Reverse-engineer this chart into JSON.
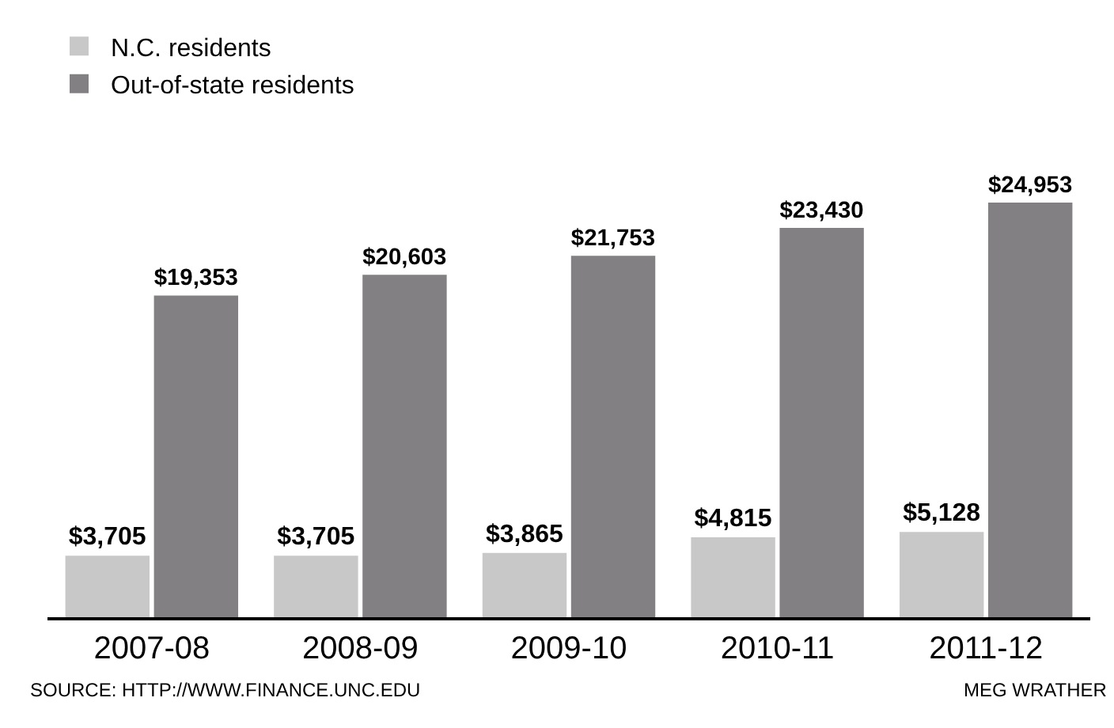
{
  "chart_data": {
    "type": "bar",
    "categories": [
      "2007-08",
      "2008-09",
      "2009-10",
      "2010-11",
      "2011-12"
    ],
    "series": [
      {
        "name": "N.C. residents",
        "color": "#c8c8c8",
        "values": [
          3705,
          3705,
          3865,
          4815,
          5128
        ],
        "value_labels": [
          "$3,705",
          "$3,705",
          "$3,865",
          "$4,815",
          "$5,128"
        ]
      },
      {
        "name": "Out-of-state residents",
        "color": "#838083",
        "values": [
          19353,
          20603,
          21753,
          23430,
          24953
        ],
        "value_labels": [
          "$19,353",
          "$20,603",
          "$21,753",
          "$23,430",
          "$24,953"
        ]
      }
    ],
    "legend": "top left",
    "annotations": [
      "SOURCE: HTTP://WWW.FINANCE.UNC.EDU",
      "MEG WRATHER"
    ]
  }
}
